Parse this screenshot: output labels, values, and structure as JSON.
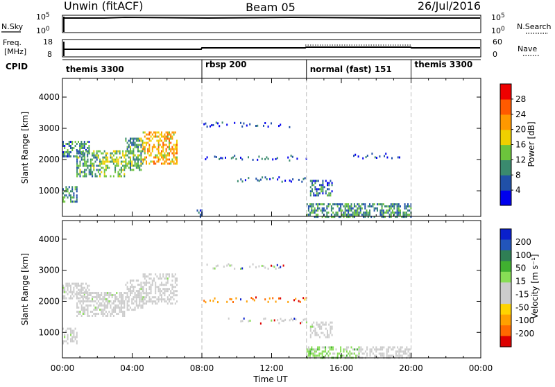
{
  "header": {
    "station": "Unwin (fitACF)",
    "beam": "Beam 05",
    "date": "26/Jul/2016"
  },
  "noise_panel": {
    "left_label": "N.Sky",
    "left_ticks": [
      "10^5",
      "10^0"
    ],
    "right_ticks": [
      "10^5",
      "10^0"
    ],
    "right_label": "N.Search"
  },
  "freq_panel": {
    "left_label_line1": "Freq.",
    "left_label_line2": "[MHz]",
    "left_ticks": [
      "18",
      "8"
    ],
    "right_ticks": [
      "60",
      "0"
    ],
    "right_label": "Nave",
    "cpid_label": "CPID"
  },
  "cpid_segments": [
    {
      "name": "themis 3300",
      "start_hour": 0
    },
    {
      "name": "rbsp 200",
      "start_hour": 8
    },
    {
      "name": "normal (fast) 151",
      "start_hour": 14
    },
    {
      "name": "themis 3300",
      "start_hour": 20
    }
  ],
  "chart_data": [
    {
      "type": "heatmap",
      "title": "",
      "xlabel": "Time UT",
      "ylabel": "Slant Range [km]",
      "xlim_hours": [
        0,
        24
      ],
      "ylim": [
        180,
        4600
      ],
      "x_ticks": [
        "00:00",
        "04:00",
        "08:00",
        "12:00",
        "16:00",
        "20:00",
        "00:00"
      ],
      "y_ticks": [
        1000,
        2000,
        3000,
        4000
      ],
      "colorbar": {
        "label": "Power [dB]",
        "range": [
          0,
          32
        ],
        "ticks": [
          4,
          8,
          12,
          16,
          20,
          24,
          28
        ],
        "colors": [
          "#0000ee",
          "#2050a8",
          "#3a8a6e",
          "#6cc43c",
          "#f0d000",
          "#ff9900",
          "#ff5a00",
          "#ee0000"
        ]
      },
      "regions": [
        {
          "t0": 0.0,
          "t1": 0.8,
          "r0": 650,
          "r1": 1150,
          "value": 10
        },
        {
          "t0": 0.0,
          "t1": 1.5,
          "r0": 2100,
          "r1": 2600,
          "value": 8
        },
        {
          "t0": 0.8,
          "t1": 2.2,
          "r0": 1500,
          "r1": 2300,
          "value": 11
        },
        {
          "t0": 2.2,
          "t1": 3.6,
          "r0": 1500,
          "r1": 2300,
          "value": 14
        },
        {
          "t0": 3.6,
          "t1": 4.6,
          "r0": 1700,
          "r1": 2700,
          "value": 12
        },
        {
          "t0": 4.6,
          "t1": 6.6,
          "r0": 1900,
          "r1": 2900,
          "value": 20
        },
        {
          "t0": 14.2,
          "t1": 15.5,
          "r0": 850,
          "r1": 1350,
          "value": 8
        },
        {
          "t0": 14.0,
          "t1": 20.0,
          "r0": 200,
          "r1": 600,
          "value": 10
        },
        {
          "t0": 7.7,
          "t1": 8.0,
          "r0": 200,
          "r1": 400,
          "value": 8
        }
      ],
      "echo_bands": [
        {
          "t0": 8.0,
          "t1": 14.0,
          "r": 2080,
          "value": 6
        },
        {
          "t0": 8.0,
          "t1": 13.0,
          "r": 3150,
          "value": 5
        },
        {
          "t0": 9.5,
          "t1": 14.0,
          "r": 1400,
          "value": 6
        },
        {
          "t0": 16.5,
          "t1": 20.0,
          "r": 2150,
          "value": 5
        }
      ]
    },
    {
      "type": "heatmap",
      "title": "",
      "xlabel": "Time UT",
      "ylabel": "Slant Range [km]",
      "xlim_hours": [
        0,
        24
      ],
      "ylim": [
        180,
        4600
      ],
      "x_ticks": [
        "00:00",
        "04:00",
        "08:00",
        "12:00",
        "16:00",
        "20:00",
        "00:00"
      ],
      "y_ticks": [
        1000,
        2000,
        3000,
        4000
      ],
      "colorbar": {
        "label": "Velocity [m s⁻¹]",
        "range": [
          -250,
          250
        ],
        "ticks": [
          200,
          100,
          50,
          15,
          -15,
          -50,
          -100,
          -200
        ],
        "colors": [
          "#dd0000",
          "#ff6a00",
          "#ffa000",
          "#ffd400",
          "#cccccc",
          "#cccccc",
          "#88dd55",
          "#40b030",
          "#2f7f55",
          "#2255bb",
          "#0a20cc"
        ]
      },
      "regions": [
        {
          "t0": 0.0,
          "t1": 0.8,
          "r0": 650,
          "r1": 1150,
          "value": 0
        },
        {
          "t0": 0.0,
          "t1": 1.5,
          "r0": 2100,
          "r1": 2600,
          "value": 0
        },
        {
          "t0": 0.8,
          "t1": 2.2,
          "r0": 1500,
          "r1": 2300,
          "value": 0
        },
        {
          "t0": 2.2,
          "t1": 3.6,
          "r0": 1500,
          "r1": 2300,
          "value": 0
        },
        {
          "t0": 3.6,
          "t1": 4.6,
          "r0": 1700,
          "r1": 2700,
          "value": 0
        },
        {
          "t0": 4.6,
          "t1": 6.6,
          "r0": 1900,
          "r1": 2900,
          "value": 0
        },
        {
          "t0": 14.2,
          "t1": 15.5,
          "r0": 850,
          "r1": 1350,
          "value": 0
        },
        {
          "t0": 14.0,
          "t1": 17.0,
          "r0": 200,
          "r1": 550,
          "value": 40
        },
        {
          "t0": 17.0,
          "t1": 20.0,
          "r0": 200,
          "r1": 550,
          "value": -30
        }
      ],
      "echo_bands": [
        {
          "t0": 8.0,
          "t1": 14.0,
          "r": 2080,
          "value": -150
        },
        {
          "t0": 8.0,
          "t1": 13.0,
          "r": 3150,
          "value": 0
        },
        {
          "t0": 9.5,
          "t1": 14.0,
          "r": 1400,
          "value": 0
        }
      ]
    }
  ]
}
